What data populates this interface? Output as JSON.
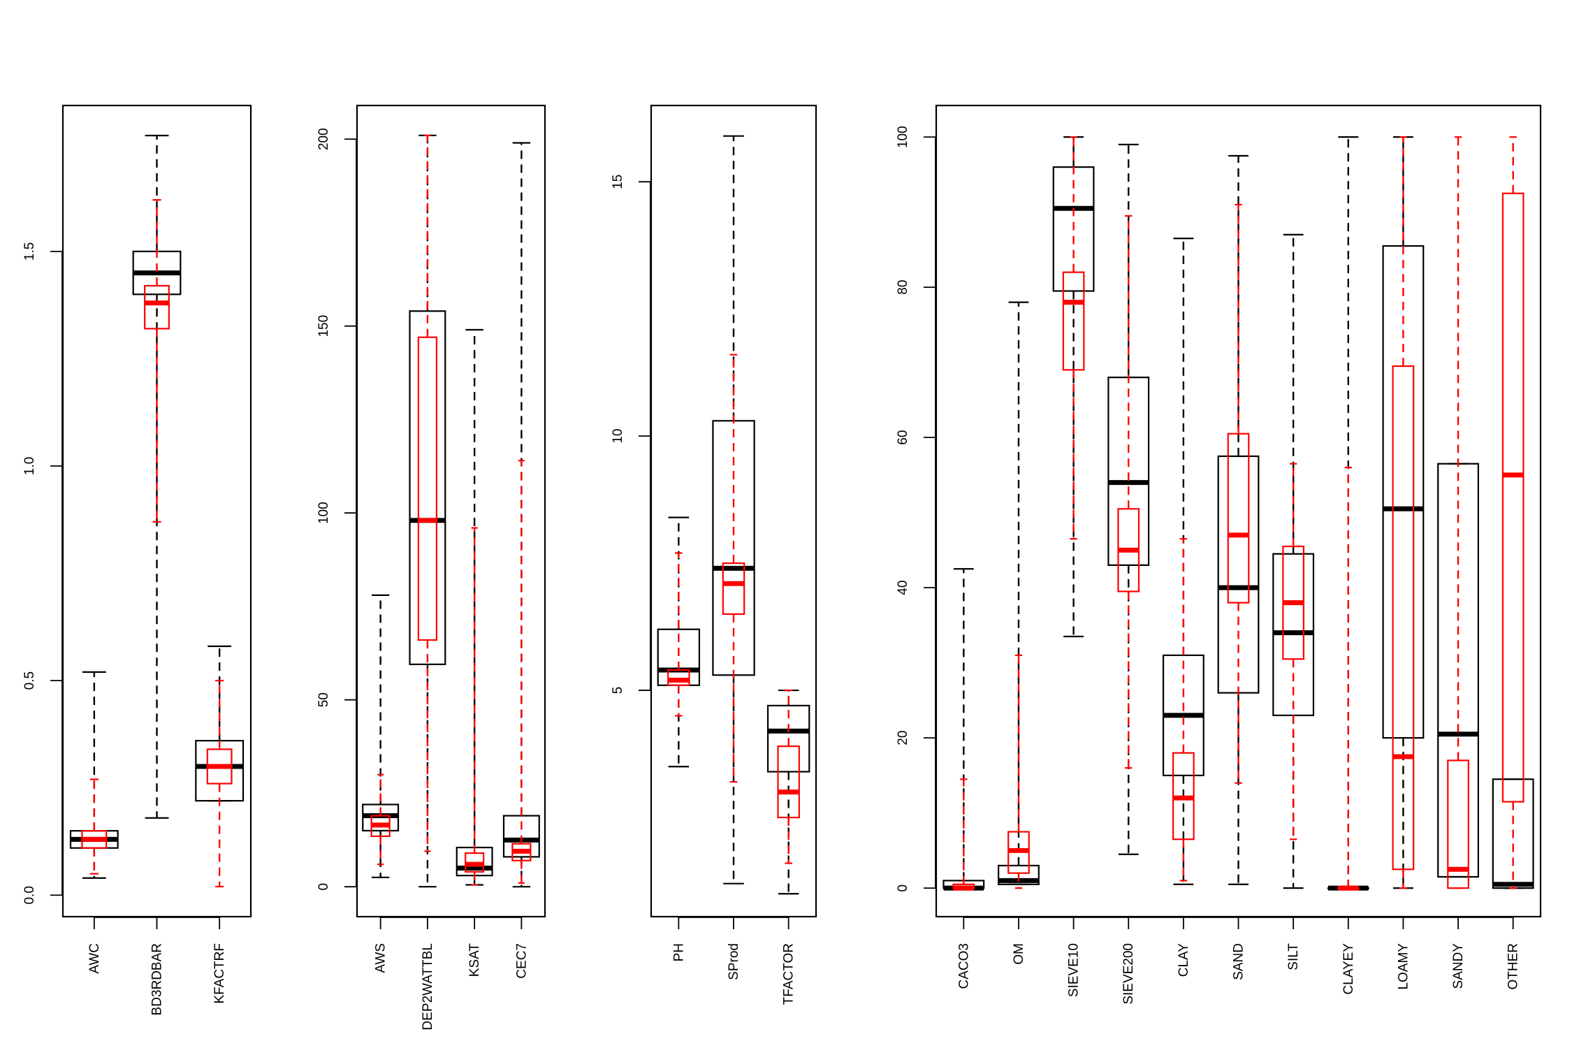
{
  "colors": {
    "black": "#000000",
    "red": "#ff0000"
  },
  "chart_data": [
    {
      "type": "boxplot",
      "ylim": [
        -0.05,
        1.84
      ],
      "yticks": [
        0.0,
        0.5,
        1.0,
        1.5
      ],
      "ytick_labels": [
        "0.0",
        "0.5",
        "1.0",
        "1.5"
      ],
      "categories": [
        "AWC",
        "BD3RDBAR",
        "KFACTRF"
      ],
      "series": [
        {
          "color": "black",
          "boxes": [
            {
              "whisker_low": 0.04,
              "q1": 0.11,
              "median": 0.13,
              "q3": 0.15,
              "whisker_high": 0.52
            },
            {
              "whisker_low": 0.18,
              "q1": 1.4,
              "median": 1.45,
              "q3": 1.5,
              "whisker_high": 1.77
            },
            {
              "whisker_low": 0.22,
              "q1": 0.22,
              "median": 0.3,
              "q3": 0.36,
              "whisker_high": 0.58
            }
          ]
        },
        {
          "color": "red",
          "boxes": [
            {
              "whisker_low": 0.05,
              "q1": 0.11,
              "median": 0.13,
              "q3": 0.15,
              "whisker_high": 0.27
            },
            {
              "whisker_low": 0.87,
              "q1": 1.32,
              "median": 1.38,
              "q3": 1.42,
              "whisker_high": 1.62
            },
            {
              "whisker_low": 0.02,
              "q1": 0.26,
              "median": 0.3,
              "q3": 0.34,
              "whisker_high": 0.5
            }
          ]
        }
      ]
    },
    {
      "type": "boxplot",
      "ylim": [
        -8,
        209
      ],
      "yticks": [
        0,
        50,
        100,
        150,
        200
      ],
      "ytick_labels": [
        "0",
        "50",
        "100",
        "150",
        "200"
      ],
      "categories": [
        "AWS",
        "DEP2WATTBL",
        "KSAT",
        "CEC7"
      ],
      "series": [
        {
          "color": "black",
          "boxes": [
            {
              "whisker_low": 2.5,
              "q1": 15,
              "median": 19,
              "q3": 22,
              "whisker_high": 78
            },
            {
              "whisker_low": 0,
              "q1": 59.5,
              "median": 98,
              "q3": 154,
              "whisker_high": 201
            },
            {
              "whisker_low": 0.5,
              "q1": 3,
              "median": 5,
              "q3": 10.5,
              "whisker_high": 149
            },
            {
              "whisker_low": 0,
              "q1": 8,
              "median": 12.5,
              "q3": 19,
              "whisker_high": 199
            }
          ]
        },
        {
          "color": "red",
          "boxes": [
            {
              "whisker_low": 6,
              "q1": 13.5,
              "median": 16.5,
              "q3": 19,
              "whisker_high": 30
            },
            {
              "whisker_low": 9.5,
              "q1": 66,
              "median": 98,
              "q3": 147,
              "whisker_high": 201
            },
            {
              "whisker_low": 0.5,
              "q1": 4,
              "median": 6,
              "q3": 9,
              "whisker_high": 96
            },
            {
              "whisker_low": 1,
              "q1": 7,
              "median": 9.5,
              "q3": 11.5,
              "whisker_high": 114
            }
          ]
        }
      ]
    },
    {
      "type": "boxplot",
      "ylim": [
        0.55,
        16.5
      ],
      "yticks": [
        5,
        10,
        15
      ],
      "ytick_labels": [
        "5",
        "10",
        "15"
      ],
      "categories": [
        "PH",
        "SProd",
        "TFACTOR"
      ],
      "series": [
        {
          "color": "black",
          "boxes": [
            {
              "whisker_low": 3.5,
              "q1": 5.1,
              "median": 5.4,
              "q3": 6.2,
              "whisker_high": 8.4
            },
            {
              "whisker_low": 1.2,
              "q1": 5.3,
              "median": 7.4,
              "q3": 10.3,
              "whisker_high": 15.9
            },
            {
              "whisker_low": 1.0,
              "q1": 3.4,
              "median": 4.2,
              "q3": 4.7,
              "whisker_high": 5.0
            }
          ]
        },
        {
          "color": "red",
          "boxes": [
            {
              "whisker_low": 4.5,
              "q1": 5.1,
              "median": 5.2,
              "q3": 5.4,
              "whisker_high": 7.7
            },
            {
              "whisker_low": 3.2,
              "q1": 6.5,
              "median": 7.1,
              "q3": 7.5,
              "whisker_high": 11.6
            },
            {
              "whisker_low": 1.6,
              "q1": 2.5,
              "median": 3.0,
              "q3": 3.9,
              "whisker_high": 5.0
            }
          ]
        }
      ]
    },
    {
      "type": "boxplot",
      "ylim": [
        -3.8,
        104.2
      ],
      "yticks": [
        0,
        20,
        40,
        60,
        80,
        100
      ],
      "ytick_labels": [
        "0",
        "20",
        "40",
        "60",
        "80",
        "100"
      ],
      "categories": [
        "CACO3",
        "OM",
        "SIEVE10",
        "SIEVE200",
        "CLAY",
        "SAND",
        "SILT",
        "CLAYEY",
        "LOAMY",
        "SANDY",
        "OTHER"
      ],
      "series": [
        {
          "color": "black",
          "boxes": [
            {
              "whisker_low": 0,
              "q1": 0,
              "median": 0,
              "q3": 1,
              "whisker_high": 42.5
            },
            {
              "whisker_low": 0.5,
              "q1": 0.5,
              "median": 1,
              "q3": 3,
              "whisker_high": 78
            },
            {
              "whisker_low": 33.5,
              "q1": 79.5,
              "median": 90.5,
              "q3": 96,
              "whisker_high": 100
            },
            {
              "whisker_low": 4.5,
              "q1": 43,
              "median": 54,
              "q3": 68,
              "whisker_high": 99
            },
            {
              "whisker_low": 0.5,
              "q1": 15,
              "median": 23,
              "q3": 31,
              "whisker_high": 86.5
            },
            {
              "whisker_low": 0.5,
              "q1": 26,
              "median": 40,
              "q3": 57.5,
              "whisker_high": 97.5
            },
            {
              "whisker_low": 0,
              "q1": 23,
              "median": 34,
              "q3": 44.5,
              "whisker_high": 87
            },
            {
              "whisker_low": 0,
              "q1": 0,
              "median": 0,
              "q3": 0,
              "whisker_high": 100
            },
            {
              "whisker_low": 0,
              "q1": 20,
              "median": 50.5,
              "q3": 85.5,
              "whisker_high": 100
            },
            {
              "whisker_low": 1.5,
              "q1": 1.5,
              "median": 20.5,
              "q3": 56.5,
              "whisker_high": 56.5
            },
            {
              "whisker_low": 0,
              "q1": 0,
              "median": 0.5,
              "q3": 14.5,
              "whisker_high": 14.5
            }
          ]
        },
        {
          "color": "red",
          "boxes": [
            {
              "whisker_low": 0,
              "q1": 0,
              "median": 0,
              "q3": 0.5,
              "whisker_high": 14.5
            },
            {
              "whisker_low": 0,
              "q1": 2,
              "median": 5,
              "q3": 7.5,
              "whisker_high": 31
            },
            {
              "whisker_low": 46.5,
              "q1": 69,
              "median": 78,
              "q3": 82,
              "whisker_high": 100
            },
            {
              "whisker_low": 16,
              "q1": 39.5,
              "median": 45,
              "q3": 50.5,
              "whisker_high": 89.5
            },
            {
              "whisker_low": 1,
              "q1": 6.5,
              "median": 12,
              "q3": 18,
              "whisker_high": 46.5
            },
            {
              "whisker_low": 14,
              "q1": 38,
              "median": 47,
              "q3": 60.5,
              "whisker_high": 91
            },
            {
              "whisker_low": 6.5,
              "q1": 30.5,
              "median": 38,
              "q3": 45.5,
              "whisker_high": 56.5
            },
            {
              "whisker_low": 0,
              "q1": 0,
              "median": 0,
              "q3": 0,
              "whisker_high": 56
            },
            {
              "whisker_low": 0,
              "q1": 2.5,
              "median": 17.5,
              "q3": 69.5,
              "whisker_high": 100
            },
            {
              "whisker_low": 0,
              "q1": 0,
              "median": 2.5,
              "q3": 17,
              "whisker_high": 100
            },
            {
              "whisker_low": 0,
              "q1": 11.5,
              "median": 55,
              "q3": 92.5,
              "whisker_high": 100
            }
          ]
        }
      ]
    }
  ]
}
